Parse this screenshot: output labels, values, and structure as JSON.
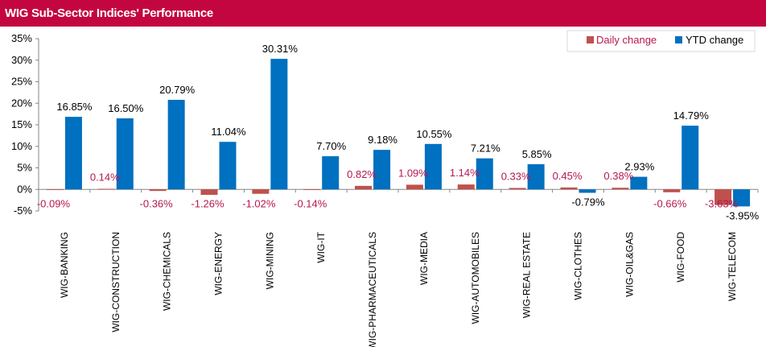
{
  "title": "WIG Sub-Sector Indices' Performance",
  "chart_data": {
    "type": "bar",
    "categories": [
      "WIG-BANKING",
      "WIG-CONSTRUCTION",
      "WIG-CHEMICALS",
      "WIG-ENERGY",
      "WIG-MINING",
      "WIG-IT",
      "WIG-PHARMACEUTICALS",
      "WIG-MEDIA",
      "WIG-AUTOMOBILES",
      "WIG-REAL ESTATE",
      "WIG-CLOTHES",
      "WIG-OIL&GAS",
      "WIG-FOOD",
      "WIG-TELECOM"
    ],
    "series": [
      {
        "name": "Daily change",
        "color": "#c0504d",
        "values": [
          -0.09,
          0.14,
          -0.36,
          -1.26,
          -1.02,
          -0.14,
          0.82,
          1.09,
          1.14,
          0.33,
          0.45,
          0.38,
          -0.66,
          -3.63
        ],
        "labels": [
          "-0.09%",
          "0.14%",
          "-0.36%",
          "-1.26%",
          "-1.02%",
          "-0.14%",
          "0.82%",
          "1.09%",
          "1.14%",
          "0.33%",
          "0.45%",
          "0.38%",
          "-0.66%",
          "-3.63%"
        ]
      },
      {
        "name": "YTD change",
        "color": "#0070c0",
        "values": [
          16.85,
          16.5,
          20.79,
          11.04,
          30.31,
          7.7,
          9.18,
          10.55,
          7.21,
          5.85,
          -0.79,
          2.93,
          14.79,
          -3.95
        ],
        "labels": [
          "16.85%",
          "16.50%",
          "20.79%",
          "11.04%",
          "30.31%",
          "7.70%",
          "9.18%",
          "10.55%",
          "7.21%",
          "5.85%",
          "-0.79%",
          "2.93%",
          "14.79%",
          "-3.95%"
        ]
      }
    ],
    "ylim": [
      -5,
      35
    ],
    "yticks": [
      35,
      30,
      25,
      20,
      15,
      10,
      5,
      0,
      -5
    ],
    "ytick_labels": [
      "35%",
      "30%",
      "25%",
      "20%",
      "15%",
      "10%",
      "5%",
      "0%",
      "-5%"
    ],
    "grid": false,
    "legend_position": "top-right",
    "xlabel": "",
    "ylabel": ""
  }
}
